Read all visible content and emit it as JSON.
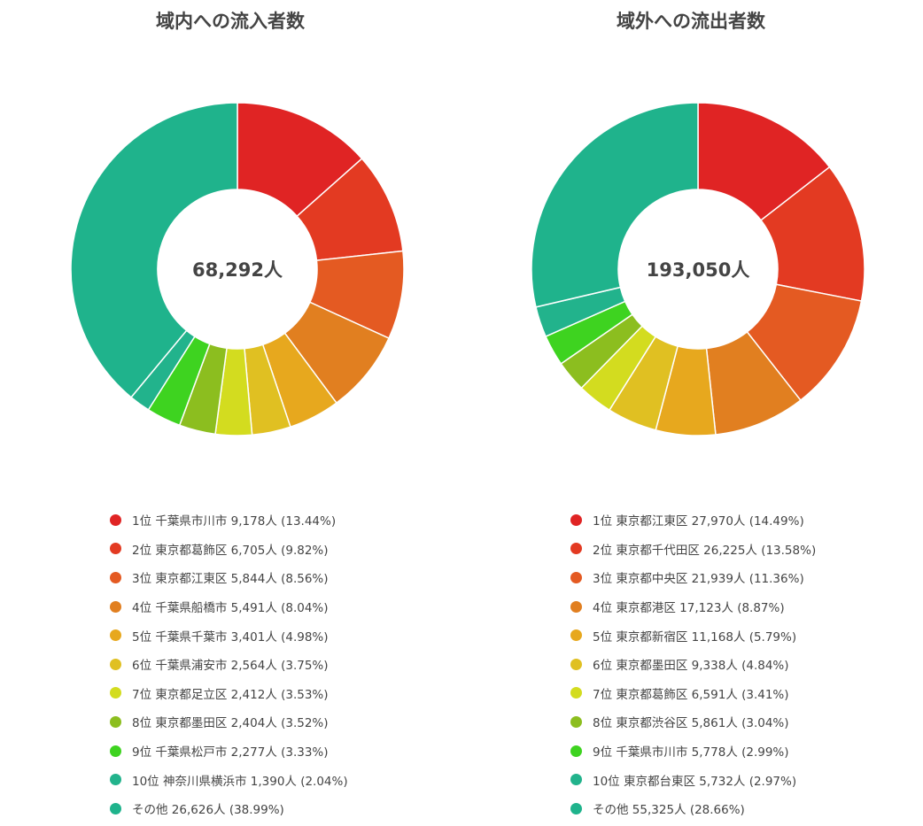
{
  "chart_data": [
    {
      "type": "pie",
      "variant": "donut",
      "title": "域内への流入者数",
      "center_label": "68,292人",
      "legend_placement": "bottom",
      "slices": [
        {
          "label": "1位 千葉県市川市 9,178人 (13.44%)",
          "value": 9178,
          "percent": 13.44,
          "color": "#e02424"
        },
        {
          "label": "2位 東京都葛飾区 6,705人 (9.82%)",
          "value": 6705,
          "percent": 9.82,
          "color": "#e33a22"
        },
        {
          "label": "3位 東京都江東区 5,844人 (8.56%)",
          "value": 5844,
          "percent": 8.56,
          "color": "#e45a22"
        },
        {
          "label": "4位 千葉県船橋市 5,491人 (8.04%)",
          "value": 5491,
          "percent": 8.04,
          "color": "#e17f20"
        },
        {
          "label": "5位 千葉県千葉市 3,401人 (4.98%)",
          "value": 3401,
          "percent": 4.98,
          "color": "#e7a81e"
        },
        {
          "label": "6位 千葉県浦安市 2,564人 (3.75%)",
          "value": 2564,
          "percent": 3.75,
          "color": "#e0c022"
        },
        {
          "label": "7位 東京都足立区 2,412人 (3.53%)",
          "value": 2412,
          "percent": 3.53,
          "color": "#d3dc1f"
        },
        {
          "label": "8位 東京都墨田区 2,404人 (3.52%)",
          "value": 2404,
          "percent": 3.52,
          "color": "#8cbe1f"
        },
        {
          "label": "9位 千葉県松戸市 2,277人 (3.33%)",
          "value": 2277,
          "percent": 3.33,
          "color": "#3ed320"
        },
        {
          "label": "10位 神奈川県横浜市 1,390人 (2.04%)",
          "value": 1390,
          "percent": 2.04,
          "color": "#22b38c"
        },
        {
          "label": "その他 26,626人 (38.99%)",
          "value": 26626,
          "percent": 38.99,
          "color": "#1fb38c"
        }
      ]
    },
    {
      "type": "pie",
      "variant": "donut",
      "title": "域外への流出者数",
      "center_label": "193,050人",
      "legend_placement": "bottom",
      "slices": [
        {
          "label": "1位 東京都江東区 27,970人 (14.49%)",
          "value": 27970,
          "percent": 14.49,
          "color": "#e02424"
        },
        {
          "label": "2位 東京都千代田区 26,225人 (13.58%)",
          "value": 26225,
          "percent": 13.58,
          "color": "#e33a22"
        },
        {
          "label": "3位 東京都中央区 21,939人 (11.36%)",
          "value": 21939,
          "percent": 11.36,
          "color": "#e45a22"
        },
        {
          "label": "4位 東京都港区 17,123人 (8.87%)",
          "value": 17123,
          "percent": 8.87,
          "color": "#e17f20"
        },
        {
          "label": "5位 東京都新宿区 11,168人 (5.79%)",
          "value": 11168,
          "percent": 5.79,
          "color": "#e7a81e"
        },
        {
          "label": "6位 東京都墨田区 9,338人 (4.84%)",
          "value": 9338,
          "percent": 4.84,
          "color": "#e0c022"
        },
        {
          "label": "7位 東京都葛飾区 6,591人 (3.41%)",
          "value": 6591,
          "percent": 3.41,
          "color": "#d3dc1f"
        },
        {
          "label": "8位 東京都渋谷区 5,861人 (3.04%)",
          "value": 5861,
          "percent": 3.04,
          "color": "#8cbe1f"
        },
        {
          "label": "9位 千葉県市川市 5,778人 (2.99%)",
          "value": 5778,
          "percent": 2.99,
          "color": "#3ed320"
        },
        {
          "label": "10位 東京都台東区 5,732人 (2.97%)",
          "value": 5732,
          "percent": 2.97,
          "color": "#22b38c"
        },
        {
          "label": "その他 55,325人 (28.66%)",
          "value": 55325,
          "percent": 28.66,
          "color": "#1fb38c"
        }
      ]
    }
  ]
}
